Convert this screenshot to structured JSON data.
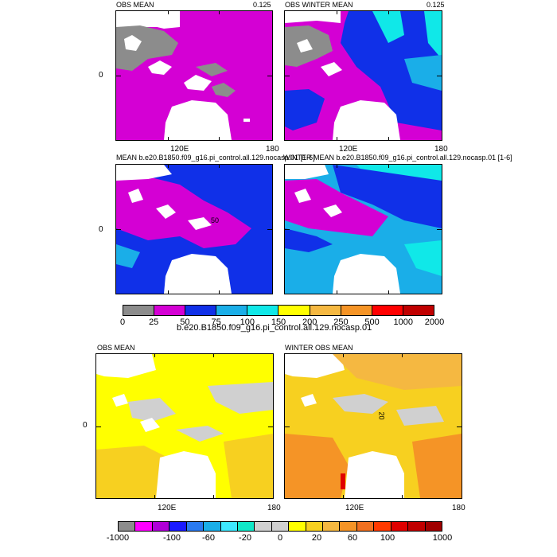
{
  "figure": {
    "top_panels": [
      {
        "title_left": "OBS MEAN",
        "title_right": "0.125",
        "y_label": "0",
        "x_labels": [
          "120E",
          "180"
        ]
      },
      {
        "title_left": "OBS WINTER MEAN",
        "title_right": "0.125"
      },
      {
        "title_left": "MEAN b.e20.B1850.f09_g16.pi_control.all.129.nocasp.01 [1-6]",
        "y_label": "0",
        "contour_label": "50"
      },
      {
        "title_left": "WINTER MEAN b.e20.B1850.f09_g16.pi_control.all.129.nocasp.01 [1-6]"
      }
    ],
    "top_colorbar": {
      "labels": [
        "0",
        "25",
        "50",
        "75",
        "100",
        "150",
        "200",
        "250",
        "500",
        "1000",
        "2000"
      ],
      "colors": [
        "#8c8c8c",
        "#d400d4",
        "#1030e8",
        "#1aaee8",
        "#10e8e8",
        "#ffff00",
        "#f5b841",
        "#f59426",
        "#ff0000",
        "#c00000"
      ],
      "caption": "b.e20.B1850.f09_g16.pi_control.all.129.nocasp.01"
    },
    "bottom_panels": [
      {
        "title_left": "OBS MEAN",
        "y_label": "0",
        "x_labels": [
          "120E",
          "180"
        ]
      },
      {
        "title_left": "WINTER OBS MEAN",
        "x_labels": [
          "120E",
          "180"
        ],
        "contour_label": "20"
      }
    ],
    "bottom_colorbar": {
      "labels": [
        "-1000",
        "-100",
        "-60",
        "-20",
        "0",
        "20",
        "60",
        "100",
        "1000"
      ],
      "colors": [
        "#8c8c8c",
        "#ff00ff",
        "#b000d8",
        "#1a1aff",
        "#2a7af0",
        "#1aaee8",
        "#3ee8ff",
        "#10e8c8",
        "#d0d0d0",
        "#d0d0d0",
        "#ffff00",
        "#f7d020",
        "#f5b841",
        "#f59426",
        "#f07020",
        "#ff3a00",
        "#e00000",
        "#c00000",
        "#a00000"
      ]
    }
  }
}
